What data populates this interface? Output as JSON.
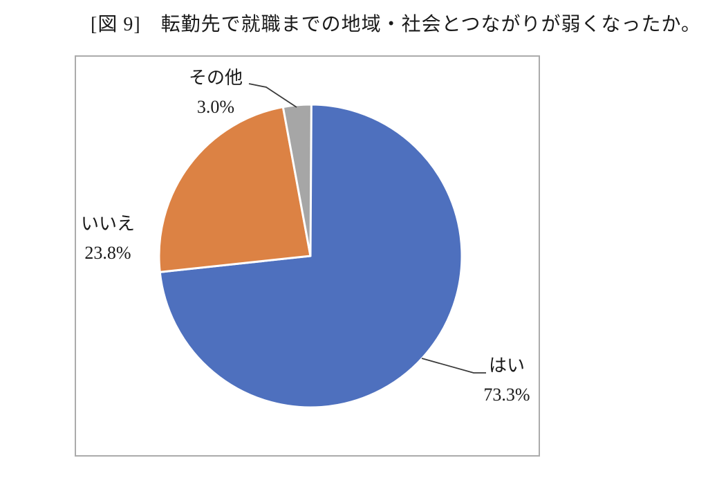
{
  "title": "[図 9]　転勤先で就職までの地域・社会とつながりが弱くなったか。",
  "chart_data": {
    "type": "pie",
    "title": "[図 9]　転勤先で就職までの地域・社会とつながりが弱くなったか。",
    "categories": [
      "はい",
      "いいえ",
      "その他"
    ],
    "values": [
      73.3,
      23.8,
      3.0
    ],
    "slices": [
      {
        "label": "はい",
        "value": 73.3,
        "display": "73.3%",
        "color": "#4e70be"
      },
      {
        "label": "いいえ",
        "value": 23.8,
        "display": "23.8%",
        "color": "#dc8244"
      },
      {
        "label": "その他",
        "value": 3.0,
        "display": "3.0%",
        "color": "#a6a6a6"
      }
    ],
    "start_angle_deg": -90,
    "direction": "clockwise",
    "data_labels": "outside-with-leader-lines",
    "legend": "none",
    "slice_border_color": "#ffffff",
    "plot_border_color": "#ababab",
    "leader_line_color": "#3a3a3a"
  }
}
